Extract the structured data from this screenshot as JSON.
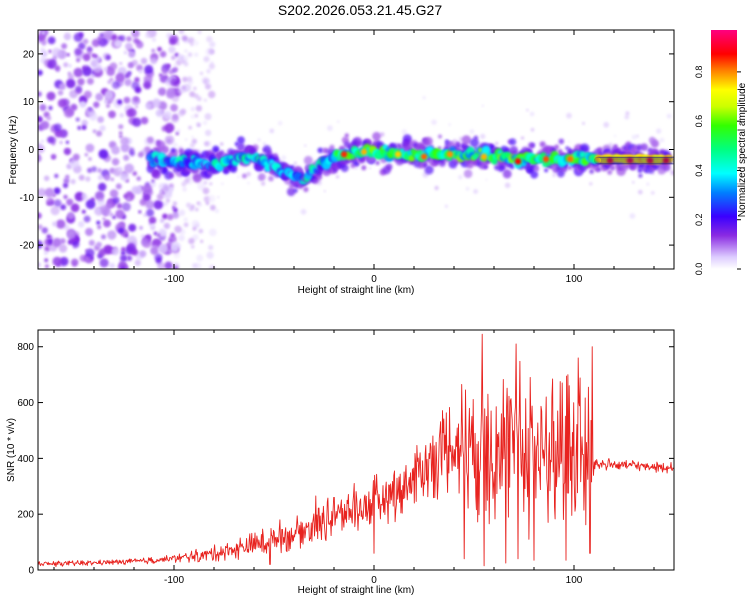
{
  "title": "S202.2026.053.21.45.G27",
  "colors": {
    "snr_line": "#e8231f",
    "axis": "#000000"
  },
  "chart_data": [
    {
      "type": "heatmap",
      "name": "spectrogram",
      "xlabel": "Height of straight line (km)",
      "ylabel": "Frequency (Hz)",
      "xlim": [
        -168,
        150
      ],
      "ylim": [
        -25,
        25
      ],
      "xticks": [
        -100,
        0,
        100
      ],
      "yticks": [
        -20,
        -10,
        0,
        10,
        20
      ],
      "colorbar": {
        "label": "Normalized spectral amplitude",
        "range": [
          0,
          0.97
        ],
        "ticks": [
          0.0,
          0.2,
          0.4,
          0.6,
          0.8
        ]
      },
      "ridge_frequency_hz": [
        [
          -112,
          -2
        ],
        [
          -100,
          -2.5
        ],
        [
          -80,
          -3
        ],
        [
          -60,
          -1
        ],
        [
          -45,
          -5
        ],
        [
          -35,
          -6
        ],
        [
          -25,
          -3
        ],
        [
          -18,
          -1
        ],
        [
          0,
          -0.5
        ],
        [
          20,
          -1
        ],
        [
          50,
          -1
        ],
        [
          70,
          -2
        ],
        [
          90,
          -2
        ],
        [
          110,
          -2
        ],
        [
          150,
          -2
        ]
      ]
    },
    {
      "type": "line",
      "name": "snr",
      "xlabel": "Height of straight line (km)",
      "ylabel": "SNR (10 * v/v)",
      "xlim": [
        -168,
        150
      ],
      "ylim": [
        0,
        860
      ],
      "xticks": [
        -100,
        0,
        100
      ],
      "yticks": [
        0,
        200,
        400,
        600,
        800
      ],
      "series": [
        {
          "name": "SNR",
          "envelope": {
            "x": [
              -168,
              -120,
              -100,
              -80,
              -60,
              -40,
              -20,
              0,
              20,
              30,
              40,
              50,
              60,
              70,
              80,
              90,
              100,
              108,
              110,
              130,
              150
            ],
            "mean": [
              20,
              30,
              40,
              60,
              90,
              130,
              190,
              240,
              320,
              400,
              450,
              470,
              450,
              430,
              420,
              420,
              410,
              400,
              380,
              375,
              365
            ],
            "spread": [
              10,
              10,
              15,
              30,
              50,
              60,
              80,
              100,
              120,
              150,
              200,
              300,
              330,
              330,
              330,
              320,
              300,
              300,
              25,
              20,
              20
            ]
          },
          "peaks": [
            [
              -52,
              230
            ],
            [
              -47,
              180
            ],
            [
              -29,
              265
            ],
            [
              -20,
              260
            ],
            [
              -10,
              310
            ],
            [
              0,
              310
            ],
            [
              23,
              420
            ],
            [
              30,
              445
            ],
            [
              45,
              585
            ],
            [
              54,
              845
            ],
            [
              57,
              630
            ],
            [
              61,
              585
            ],
            [
              66,
              765
            ],
            [
              71,
              810
            ],
            [
              78,
              690
            ],
            [
              86,
              620
            ],
            [
              89,
              620
            ],
            [
              94,
              670
            ],
            [
              97,
              700
            ],
            [
              102,
              760
            ],
            [
              109,
              800
            ]
          ],
          "troughs": [
            [
              -52,
              20
            ],
            [
              0,
              60
            ],
            [
              45,
              40
            ],
            [
              55,
              15
            ],
            [
              66,
              25
            ],
            [
              72,
              40
            ],
            [
              80,
              35
            ],
            [
              96,
              35
            ],
            [
              108,
              60
            ]
          ]
        }
      ]
    }
  ]
}
